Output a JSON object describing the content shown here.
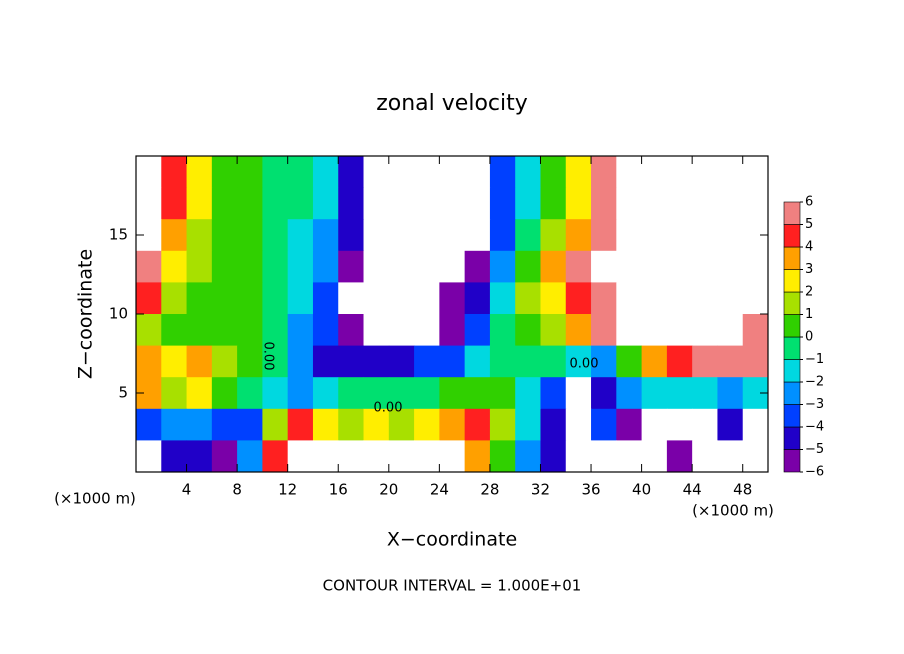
{
  "chart_data": {
    "type": "heatmap",
    "title": "zonal velocity",
    "xlabel": "X−coordinate",
    "ylabel": "Z−coordinate",
    "x_unit_label": "(×1000 m)",
    "footer": "CONTOUR INTERVAL = 1.000E+01",
    "contour_labels": [
      "0.00",
      "0.00",
      "0.00",
      "0.00"
    ],
    "xlim": [
      0,
      50
    ],
    "ylim": [
      0,
      20
    ],
    "xticks": [
      4,
      8,
      12,
      16,
      20,
      24,
      28,
      32,
      36,
      40,
      44,
      48
    ],
    "yticks": [
      5,
      10,
      15
    ],
    "x": [
      1,
      3,
      5,
      7,
      9,
      11,
      13,
      15,
      17,
      19,
      21,
      23,
      25,
      27,
      29,
      31,
      33,
      35,
      37,
      39,
      41,
      43,
      45,
      47,
      49
    ],
    "y": [
      19,
      17,
      15,
      13,
      11,
      9,
      7,
      5,
      3,
      1
    ],
    "z": [
      [
        8,
        4,
        2,
        0.5,
        0.5,
        -0.5,
        -1,
        -2,
        -5,
        -8,
        -8,
        -8,
        -8,
        -8,
        -4,
        -2,
        0.5,
        2.5,
        5,
        8,
        8,
        8,
        8,
        8,
        8
      ],
      [
        8,
        4,
        2,
        0.5,
        0.5,
        -0.5,
        -1,
        -2,
        -5,
        -8,
        -8,
        -8,
        -8,
        -8,
        -4,
        -2,
        0.5,
        2.5,
        5,
        8,
        8,
        8,
        8,
        8,
        8
      ],
      [
        7,
        3,
        1.5,
        0.5,
        0.5,
        -0.5,
        -1.5,
        -3,
        -5,
        -8,
        -8,
        -8,
        -8,
        -7,
        -4,
        -1,
        1,
        3,
        5.5,
        8,
        8,
        8,
        8,
        8,
        8
      ],
      [
        5,
        2,
        1,
        0.5,
        0.5,
        -0.5,
        -2,
        -3,
        -6,
        -8,
        -8,
        -8,
        -8,
        -6,
        -3,
        0.5,
        3,
        5,
        8,
        8,
        8,
        8,
        8,
        8,
        8
      ],
      [
        4,
        1,
        0.5,
        0.5,
        0,
        -1,
        -2,
        -4,
        -7,
        -8,
        -8,
        -8,
        -6,
        -5,
        -2,
        1,
        2,
        4,
        6,
        8,
        8,
        8,
        8,
        8,
        7
      ],
      [
        1,
        0.5,
        0.5,
        0.5,
        0,
        -1,
        -3,
        -4,
        -6,
        -7,
        -8,
        -8,
        -6,
        -4,
        -1,
        0,
        1,
        3,
        5,
        8,
        8,
        8,
        8,
        8,
        6
      ],
      [
        3,
        2,
        3,
        1,
        0.5,
        -1,
        -3,
        -5,
        -5,
        -5,
        -5,
        -4,
        -4,
        -2,
        -1,
        -0.5,
        -0.5,
        -2,
        -3,
        0.5,
        3,
        4,
        5,
        5,
        6
      ],
      [
        3,
        1,
        2,
        0.5,
        -1,
        -2,
        -3,
        -2,
        -1,
        -1,
        -0.5,
        -0.5,
        0,
        0.5,
        0,
        -2,
        -4,
        -8,
        -5,
        -3,
        -2,
        -2,
        -2,
        -3,
        -2
      ],
      [
        -4,
        -3,
        -3,
        -4,
        -4,
        1,
        4,
        2,
        1,
        2,
        1,
        2,
        3,
        4,
        1,
        -2,
        -5,
        -8,
        -4,
        -6,
        -8,
        -8,
        -8,
        -5,
        -8
      ],
      [
        -8,
        -5,
        -5,
        -6,
        -3,
        4,
        -8,
        -8,
        -8,
        -8,
        -8,
        -8,
        -8,
        3,
        0.5,
        -3,
        -5,
        -8,
        8,
        8,
        8,
        -6,
        8,
        8,
        8
      ]
    ],
    "colorbar_ticks": [
      {
        "value": -6,
        "label": "−6"
      },
      {
        "value": -5,
        "label": "−5"
      },
      {
        "value": -4,
        "label": "−4"
      },
      {
        "value": -3,
        "label": "−3"
      },
      {
        "value": -2,
        "label": "−2"
      },
      {
        "value": -1,
        "label": "−1"
      },
      0,
      1,
      2,
      3,
      4,
      5,
      6
    ],
    "colors": [
      "#7a00a8",
      "#2000c8",
      "#0040ff",
      "#0090ff",
      "#00d8e0",
      "#00e070",
      "#30d000",
      "#a8e000",
      "#ffee00",
      "#ffa000",
      "#ff2020",
      "#f08080"
    ]
  }
}
